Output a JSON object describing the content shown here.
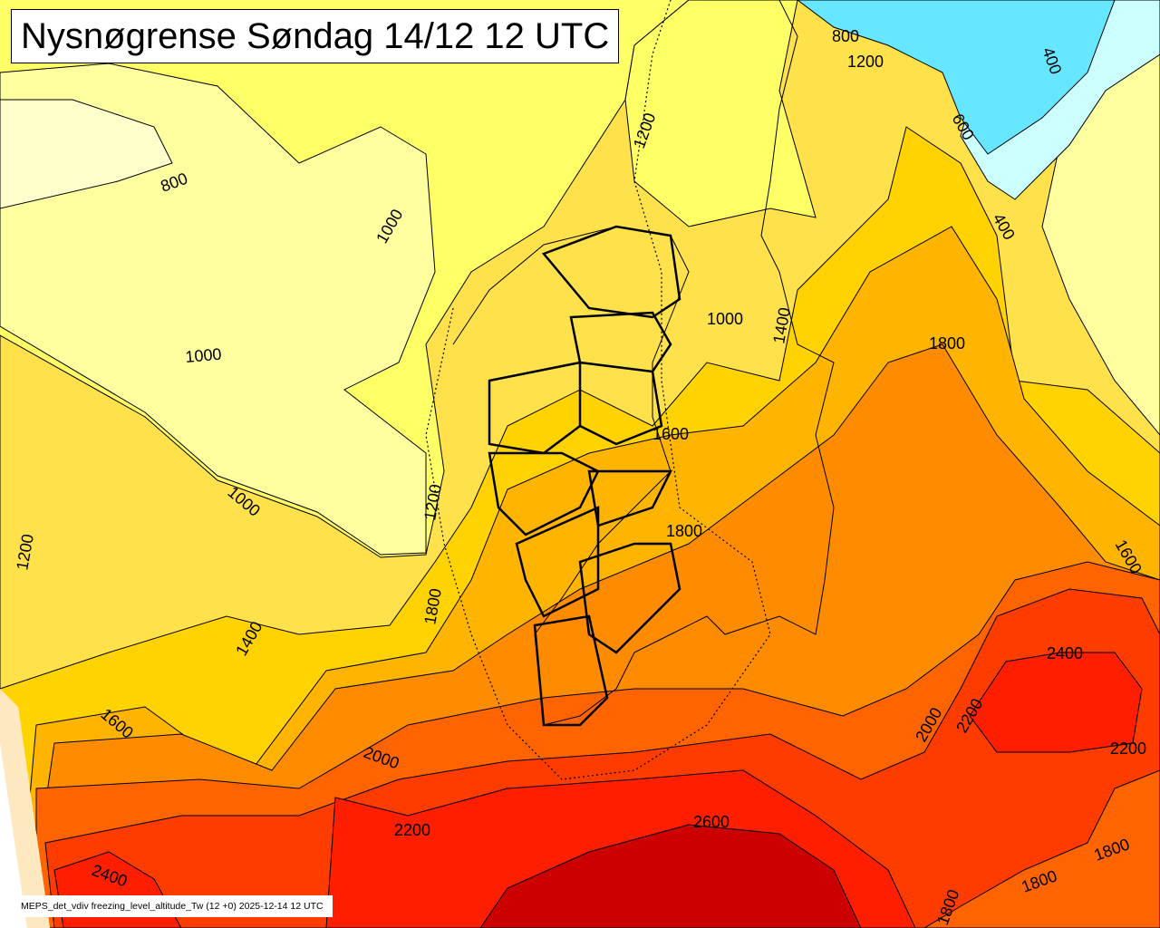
{
  "title": "Nysnøgrense Søndag 14/12 12 UTC",
  "footer": "MEPS_det_vdiv freezing_level_altitude_Tw (12 +0) 2025-12-14 12 UTC",
  "colors": {
    "below_800": "#ffffcc",
    "800_1000": "#ffffa0",
    "1000_1200": "#ffff66",
    "1200_1400": "#ffe24b",
    "1400_1600": "#ffd200",
    "1600_1800": "#ffb400",
    "1800_2000": "#ff8c00",
    "2000_2200": "#ff6400",
    "2200_2400": "#ff3c00",
    "2400_2600": "#ff1e00",
    "above_2600": "#cc0000",
    "sea_low": "#66e6ff",
    "sea_pale": "#ccffff"
  },
  "contour_labels": [
    "800",
    "1000",
    "1000",
    "1000",
    "1000",
    "1200",
    "1200",
    "1400",
    "1600",
    "1800",
    "1800",
    "2000",
    "2200",
    "2400",
    "2600",
    "1000",
    "1400",
    "1600",
    "1800",
    "1800",
    "2000",
    "2200",
    "2200",
    "2400",
    "1600",
    "1200",
    "1200",
    "800",
    "600",
    "400",
    "400",
    "1800",
    "1800"
  ]
}
